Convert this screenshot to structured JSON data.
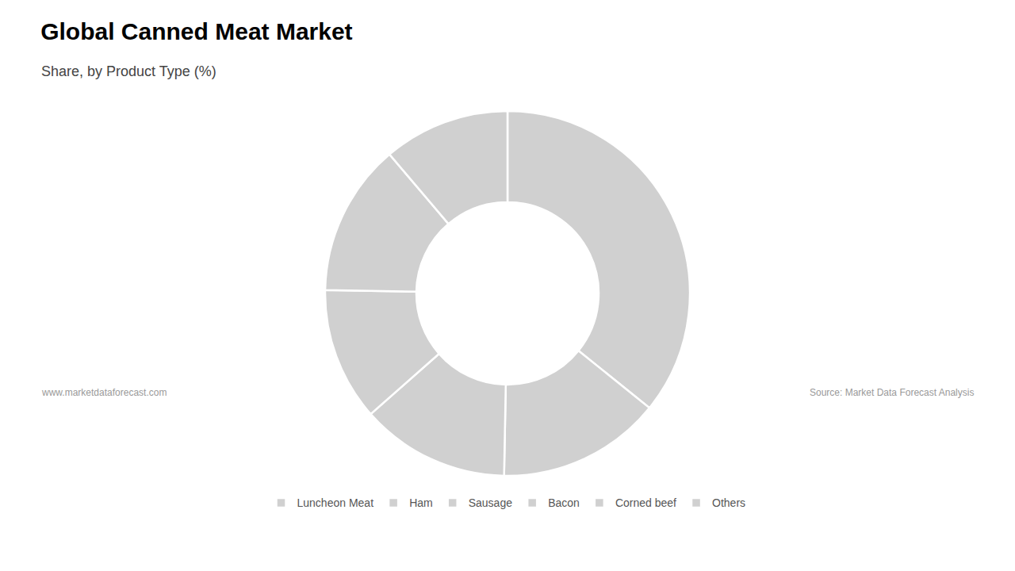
{
  "chart_data": {
    "type": "pie",
    "title": "Global Canned Meat Market",
    "subtitle": "Share, by Product Type (%)",
    "categories": [
      "Luncheon Meat",
      "Ham",
      "Sausage",
      "Bacon",
      "Corned beef",
      "Others"
    ],
    "values": [
      35.8,
      14.5,
      13.2,
      11.8,
      13.5,
      11.2
    ],
    "color": "#d0d0d0",
    "legend": "bottom",
    "annotations": [
      "www.marketdataforecast.com",
      "Source: Market Data Forecast Analysis"
    ]
  }
}
